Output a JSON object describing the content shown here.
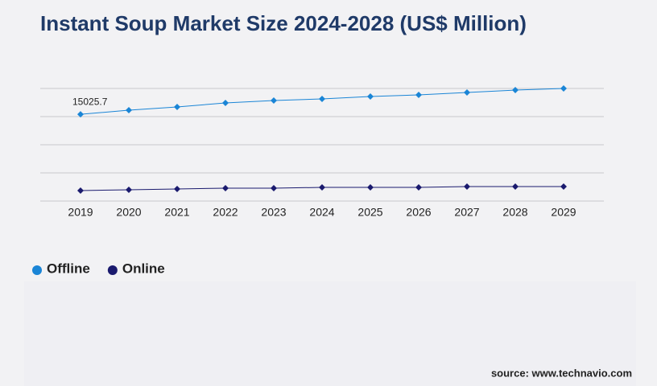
{
  "chart_data": {
    "type": "line",
    "title": "Instant Soup Market Size 2024-2028 (US$ Million)",
    "categories": [
      "2019",
      "2020",
      "2021",
      "2022",
      "2023",
      "2024",
      "2025",
      "2026",
      "2027",
      "2028",
      "2029"
    ],
    "series": [
      {
        "name": "Offline",
        "color": "#1a85d6",
        "values": [
          15025.7,
          15740,
          16297,
          16993,
          17411,
          17690,
          18107,
          18386,
          18804,
          19222,
          19500
        ]
      },
      {
        "name": "Online",
        "color": "#1a1a6e",
        "values": [
          1811,
          1950,
          2089,
          2229,
          2229,
          2368,
          2368,
          2368,
          2507,
          2507,
          2507
        ]
      }
    ],
    "ylim": [
      0,
      19500
    ],
    "yticks": [
      0,
      4875,
      9750,
      14625,
      19500
    ],
    "grid": true,
    "source": "source: www.technavio.com"
  }
}
